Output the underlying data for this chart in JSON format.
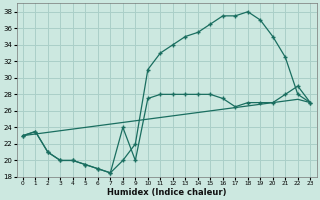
{
  "xlabel": "Humidex (Indice chaleur)",
  "background_color": "#cce8e0",
  "grid_color": "#aacfc8",
  "line_color": "#1a6e60",
  "xlim": [
    -0.5,
    23.5
  ],
  "ylim": [
    18,
    39
  ],
  "xticks": [
    0,
    1,
    2,
    3,
    4,
    5,
    6,
    7,
    8,
    9,
    10,
    11,
    12,
    13,
    14,
    15,
    16,
    17,
    18,
    19,
    20,
    21,
    22,
    23
  ],
  "yticks": [
    18,
    20,
    22,
    24,
    26,
    28,
    30,
    32,
    34,
    36,
    38
  ],
  "line1_x": [
    0,
    1,
    2,
    3,
    4,
    5,
    6,
    7,
    8,
    9,
    10,
    11,
    12,
    13,
    14,
    15,
    16,
    17,
    18,
    19,
    20,
    21,
    22,
    23
  ],
  "line1_y": [
    23,
    23.5,
    21,
    20,
    20,
    19.5,
    19,
    18.5,
    20,
    22,
    31,
    33,
    34,
    35,
    35.5,
    36.5,
    37.5,
    37.5,
    38,
    37,
    35,
    32.5,
    28,
    27
  ],
  "line2_x": [
    0,
    1,
    2,
    3,
    4,
    5,
    6,
    7,
    8,
    9,
    10,
    11,
    12,
    13,
    14,
    15,
    16,
    17,
    18,
    19,
    20,
    21,
    22,
    23
  ],
  "line2_y": [
    23,
    23.5,
    21,
    20,
    20,
    19.5,
    19,
    18.5,
    24,
    20,
    27.5,
    28,
    28,
    28,
    28,
    28,
    27.5,
    26.5,
    27,
    27,
    27,
    28,
    29,
    27
  ],
  "line3_x": [
    0,
    1,
    2,
    3,
    4,
    5,
    6,
    7,
    8,
    9,
    10,
    11,
    12,
    13,
    14,
    15,
    16,
    17,
    18,
    19,
    20,
    21,
    22,
    23
  ],
  "line3_y": [
    23,
    23.2,
    23.4,
    23.6,
    23.8,
    24,
    24.2,
    24.4,
    24.6,
    24.8,
    25,
    25.2,
    25.4,
    25.6,
    25.8,
    26,
    26.2,
    26.4,
    26.6,
    26.8,
    27,
    27.2,
    27.4,
    27.0
  ]
}
